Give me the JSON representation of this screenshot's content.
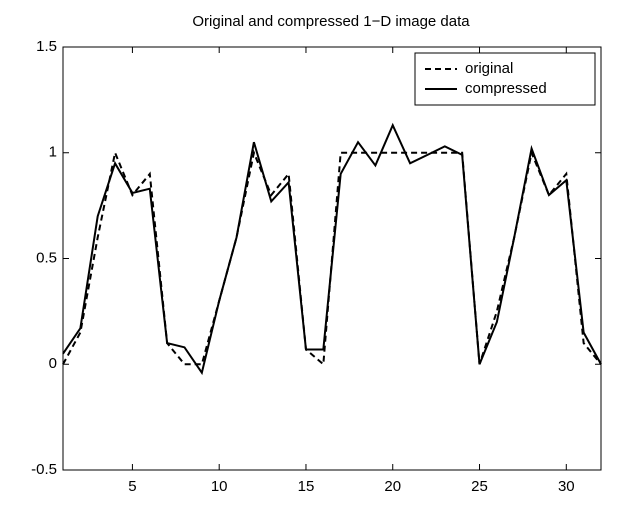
{
  "chart_data": {
    "type": "line",
    "title": "Original and compressed 1−D image data",
    "x": [
      1,
      2,
      3,
      4,
      5,
      6,
      7,
      8,
      9,
      10,
      11,
      12,
      13,
      14,
      15,
      16,
      17,
      18,
      19,
      20,
      21,
      22,
      23,
      24,
      25,
      26,
      27,
      28,
      29,
      30,
      31,
      32
    ],
    "series": [
      {
        "name": "original",
        "color": "#000000",
        "linestyle": "dashed",
        "values": [
          0,
          0.15,
          0.6,
          1,
          0.8,
          0.9,
          0.1,
          0,
          0,
          0.3,
          0.6,
          1,
          0.8,
          0.9,
          0.07,
          0,
          1,
          1,
          1,
          1,
          1,
          1,
          1,
          1,
          0,
          0.25,
          0.6,
          1,
          0.8,
          0.9,
          0.1,
          0
        ]
      },
      {
        "name": "compressed",
        "color": "#000000",
        "linestyle": "solid",
        "values": [
          0.05,
          0.17,
          0.7,
          0.95,
          0.81,
          0.83,
          0.1,
          0.08,
          -0.04,
          0.3,
          0.6,
          1.05,
          0.77,
          0.86,
          0.07,
          0.07,
          0.9,
          1.05,
          0.94,
          1.13,
          0.95,
          0.99,
          1.03,
          0.99,
          0,
          0.2,
          0.6,
          1.02,
          0.8,
          0.87,
          0.15,
          0
        ]
      }
    ],
    "xlim": [
      1,
      32
    ],
    "xticks": [
      5,
      10,
      15,
      20,
      25,
      30
    ],
    "ylim": [
      -0.5,
      1.5
    ],
    "yticks": [
      -0.5,
      0,
      0.5,
      1,
      1.5
    ],
    "grid": false,
    "legend": "upper right"
  }
}
